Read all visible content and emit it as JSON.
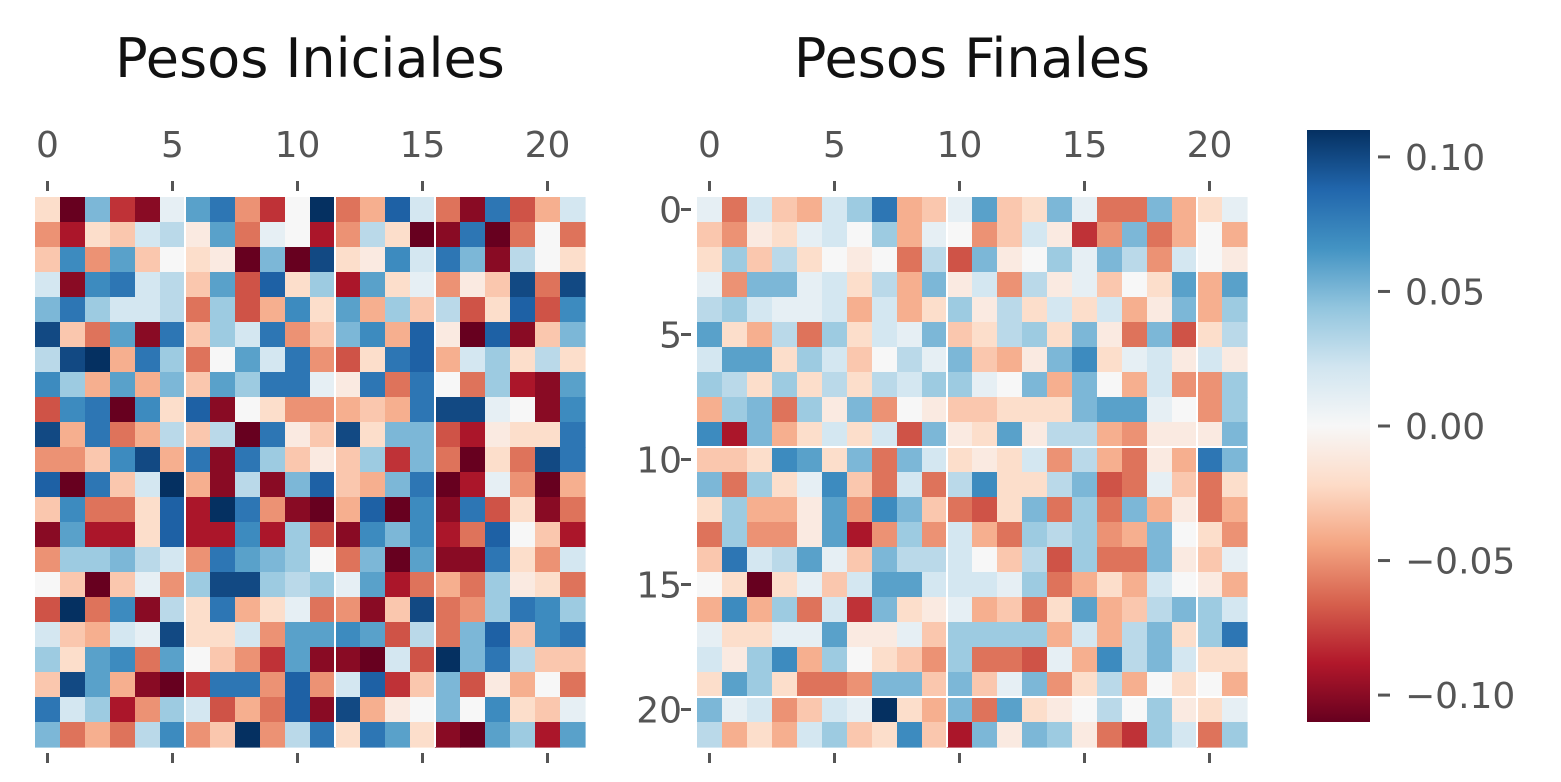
{
  "chart_data": [
    {
      "type": "heatmap",
      "title": "Pesos Iniciales",
      "rows": 22,
      "cols": 22,
      "x_ticks": [
        "0",
        "5",
        "10",
        "15",
        "20"
      ],
      "y_ticks": [],
      "colormap": "RdBu",
      "vmin": -0.11,
      "vmax": 0.11,
      "values": [
        [
          -0.02,
          -0.11,
          0.05,
          -0.08,
          -0.1,
          0.01,
          0.06,
          0.08,
          -0.05,
          -0.08,
          0.0,
          0.11,
          -0.06,
          -0.04,
          0.09,
          0.02,
          -0.06,
          -0.1,
          0.08,
          -0.07,
          -0.04,
          0.02
        ],
        [
          -0.05,
          -0.09,
          -0.02,
          -0.03,
          0.02,
          0.03,
          -0.01,
          0.06,
          -0.06,
          0.01,
          0.0,
          -0.09,
          -0.05,
          0.03,
          -0.02,
          -0.11,
          -0.1,
          0.08,
          -0.11,
          -0.06,
          0.0,
          -0.06
        ],
        [
          -0.03,
          0.07,
          -0.05,
          0.06,
          -0.03,
          0.0,
          -0.02,
          -0.01,
          -0.11,
          0.05,
          -0.11,
          0.1,
          -0.02,
          -0.01,
          0.07,
          0.02,
          0.08,
          0.05,
          -0.1,
          0.03,
          0.0,
          -0.02
        ],
        [
          0.02,
          -0.1,
          0.07,
          0.08,
          0.02,
          0.03,
          -0.03,
          0.06,
          -0.07,
          0.09,
          -0.02,
          0.04,
          -0.09,
          0.06,
          -0.02,
          0.01,
          -0.05,
          -0.01,
          -0.03,
          0.1,
          -0.06,
          0.1
        ],
        [
          0.05,
          0.08,
          0.04,
          0.02,
          0.02,
          0.03,
          -0.06,
          0.04,
          -0.07,
          -0.04,
          0.07,
          -0.02,
          0.06,
          -0.04,
          0.04,
          -0.03,
          0.03,
          -0.07,
          -0.02,
          0.09,
          -0.07,
          0.07
        ],
        [
          0.1,
          -0.03,
          -0.06,
          0.06,
          -0.1,
          0.08,
          -0.03,
          0.04,
          0.02,
          0.08,
          -0.05,
          -0.03,
          0.05,
          0.07,
          -0.04,
          0.09,
          -0.01,
          -0.11,
          0.09,
          -0.1,
          -0.03,
          0.05
        ],
        [
          0.03,
          0.1,
          0.11,
          -0.04,
          0.08,
          0.04,
          -0.06,
          0.0,
          0.06,
          0.02,
          0.08,
          -0.05,
          -0.07,
          -0.02,
          0.08,
          0.09,
          -0.04,
          0.02,
          0.04,
          -0.02,
          0.03,
          -0.02
        ],
        [
          0.07,
          0.04,
          -0.04,
          0.06,
          -0.04,
          0.05,
          -0.03,
          0.06,
          0.04,
          0.08,
          0.08,
          0.01,
          -0.01,
          0.08,
          -0.06,
          0.08,
          0.0,
          -0.06,
          0.04,
          -0.09,
          -0.1,
          0.06
        ],
        [
          -0.07,
          0.07,
          0.08,
          -0.11,
          0.07,
          -0.02,
          0.09,
          -0.1,
          0.0,
          -0.02,
          -0.05,
          -0.05,
          -0.04,
          -0.03,
          -0.04,
          0.08,
          0.1,
          0.1,
          0.01,
          0.0,
          -0.1,
          0.07
        ],
        [
          0.1,
          -0.04,
          0.08,
          -0.06,
          -0.04,
          0.03,
          -0.03,
          0.03,
          -0.11,
          0.08,
          -0.01,
          -0.03,
          0.1,
          -0.02,
          0.05,
          0.05,
          -0.07,
          -0.09,
          -0.01,
          -0.02,
          -0.02,
          0.08
        ],
        [
          -0.05,
          -0.05,
          -0.03,
          0.07,
          0.1,
          -0.04,
          0.08,
          -0.1,
          0.08,
          0.04,
          -0.03,
          -0.01,
          -0.03,
          0.04,
          -0.08,
          0.05,
          -0.06,
          -0.11,
          -0.02,
          -0.06,
          0.1,
          0.08
        ],
        [
          0.09,
          -0.11,
          0.08,
          -0.03,
          0.02,
          0.11,
          -0.04,
          -0.1,
          0.03,
          -0.1,
          0.05,
          0.09,
          -0.03,
          -0.04,
          0.05,
          0.08,
          -0.11,
          -0.09,
          0.01,
          -0.05,
          -0.11,
          -0.04
        ],
        [
          -0.03,
          0.07,
          -0.06,
          -0.06,
          -0.02,
          0.09,
          -0.09,
          0.11,
          0.08,
          -0.05,
          -0.1,
          -0.11,
          -0.04,
          0.09,
          -0.11,
          0.07,
          -0.1,
          0.08,
          -0.07,
          -0.02,
          -0.1,
          -0.06
        ],
        [
          -0.1,
          0.06,
          -0.09,
          -0.09,
          -0.02,
          0.09,
          -0.09,
          -0.09,
          0.07,
          -0.09,
          0.04,
          -0.07,
          -0.1,
          0.07,
          0.05,
          0.07,
          -0.09,
          -0.06,
          0.09,
          0.0,
          -0.03,
          -0.09
        ],
        [
          -0.05,
          0.04,
          0.04,
          0.05,
          0.03,
          0.02,
          -0.05,
          0.08,
          0.06,
          0.05,
          0.04,
          0.0,
          -0.06,
          0.05,
          -0.11,
          0.06,
          -0.1,
          -0.1,
          0.08,
          -0.02,
          -0.05,
          0.02
        ],
        [
          0.0,
          -0.03,
          -0.11,
          -0.03,
          0.01,
          -0.05,
          0.04,
          0.1,
          0.1,
          0.04,
          0.03,
          0.04,
          0.01,
          0.06,
          -0.09,
          -0.06,
          -0.04,
          -0.06,
          0.04,
          -0.01,
          -0.02,
          -0.06
        ],
        [
          -0.07,
          0.11,
          -0.06,
          0.07,
          -0.1,
          0.03,
          -0.02,
          0.08,
          -0.04,
          -0.02,
          0.01,
          -0.06,
          -0.05,
          -0.1,
          -0.03,
          0.1,
          -0.06,
          -0.05,
          0.04,
          0.08,
          0.07,
          0.04
        ],
        [
          0.02,
          -0.03,
          -0.04,
          0.02,
          0.01,
          0.1,
          -0.02,
          -0.02,
          0.02,
          -0.05,
          0.06,
          0.06,
          0.07,
          0.06,
          -0.07,
          0.03,
          -0.06,
          0.05,
          0.09,
          -0.03,
          0.07,
          0.08
        ],
        [
          0.04,
          -0.02,
          0.06,
          0.07,
          -0.06,
          0.06,
          0.0,
          -0.03,
          -0.05,
          -0.08,
          0.06,
          -0.1,
          -0.1,
          -0.11,
          0.02,
          -0.07,
          0.11,
          0.05,
          0.08,
          0.03,
          -0.03,
          -0.03
        ],
        [
          -0.03,
          0.1,
          0.06,
          -0.04,
          -0.1,
          -0.11,
          -0.08,
          0.08,
          0.08,
          -0.05,
          0.09,
          -0.05,
          0.02,
          0.09,
          -0.08,
          -0.03,
          0.05,
          -0.07,
          -0.01,
          -0.04,
          0.0,
          -0.06
        ],
        [
          0.08,
          0.02,
          0.04,
          -0.09,
          -0.05,
          0.04,
          0.02,
          -0.07,
          -0.04,
          -0.06,
          0.09,
          -0.1,
          0.1,
          -0.04,
          -0.01,
          0.0,
          0.05,
          0.0,
          0.07,
          -0.02,
          -0.03,
          0.01
        ],
        [
          0.05,
          -0.06,
          -0.04,
          -0.06,
          0.03,
          0.07,
          -0.05,
          -0.03,
          0.11,
          -0.05,
          0.03,
          0.08,
          -0.02,
          0.08,
          0.06,
          -0.02,
          -0.1,
          -0.11,
          0.06,
          0.04,
          -0.09,
          0.06
        ]
      ]
    },
    {
      "type": "heatmap",
      "title": "Pesos Finales",
      "rows": 22,
      "cols": 22,
      "x_ticks": [
        "0",
        "5",
        "10",
        "15",
        "20"
      ],
      "y_ticks": [
        "0",
        "5",
        "10",
        "15",
        "20"
      ],
      "colormap": "RdBu",
      "vmin": -0.11,
      "vmax": 0.11,
      "values": [
        [
          0.01,
          -0.06,
          0.02,
          -0.03,
          -0.04,
          0.02,
          0.04,
          0.08,
          -0.04,
          -0.03,
          0.01,
          0.06,
          -0.03,
          -0.02,
          0.05,
          0.01,
          -0.06,
          -0.06,
          0.05,
          -0.04,
          -0.02,
          0.01
        ],
        [
          -0.03,
          -0.05,
          -0.01,
          -0.02,
          0.01,
          0.02,
          0.0,
          0.04,
          -0.04,
          0.01,
          0.0,
          -0.05,
          -0.03,
          0.02,
          -0.01,
          -0.08,
          -0.05,
          0.05,
          -0.06,
          -0.04,
          0.0,
          -0.04
        ],
        [
          -0.02,
          0.04,
          -0.03,
          0.03,
          -0.02,
          0.0,
          -0.01,
          0.0,
          -0.06,
          0.03,
          -0.07,
          0.05,
          -0.01,
          0.0,
          0.04,
          0.01,
          0.05,
          0.03,
          -0.05,
          0.02,
          0.0,
          -0.01
        ],
        [
          0.01,
          -0.05,
          0.05,
          0.05,
          0.01,
          0.02,
          -0.02,
          0.03,
          -0.04,
          0.05,
          -0.01,
          0.02,
          -0.05,
          0.03,
          -0.01,
          0.01,
          -0.03,
          0.0,
          -0.02,
          0.06,
          -0.04,
          0.06
        ],
        [
          0.03,
          0.04,
          0.02,
          0.01,
          0.01,
          0.02,
          -0.04,
          0.02,
          -0.04,
          -0.02,
          0.04,
          -0.01,
          0.03,
          -0.02,
          0.02,
          -0.02,
          0.02,
          -0.04,
          -0.01,
          0.05,
          -0.04,
          0.04
        ],
        [
          0.06,
          -0.02,
          -0.04,
          0.03,
          -0.06,
          0.04,
          -0.02,
          0.02,
          0.01,
          0.05,
          -0.03,
          -0.02,
          0.03,
          0.04,
          -0.02,
          0.05,
          -0.01,
          -0.06,
          0.05,
          -0.07,
          -0.02,
          0.03
        ],
        [
          0.02,
          0.06,
          0.06,
          -0.02,
          0.04,
          0.02,
          -0.03,
          0.0,
          0.03,
          0.01,
          0.05,
          -0.03,
          -0.04,
          -0.01,
          0.05,
          0.07,
          -0.02,
          0.01,
          0.02,
          -0.01,
          0.02,
          -0.01
        ],
        [
          0.04,
          0.03,
          -0.02,
          0.04,
          -0.02,
          0.03,
          -0.02,
          0.03,
          0.02,
          0.04,
          0.04,
          0.01,
          0.0,
          0.05,
          -0.04,
          0.05,
          0.0,
          -0.04,
          0.02,
          -0.05,
          -0.05,
          0.04
        ],
        [
          -0.04,
          0.04,
          0.05,
          -0.06,
          0.04,
          -0.01,
          0.05,
          -0.05,
          0.0,
          -0.01,
          -0.03,
          -0.03,
          -0.02,
          -0.02,
          -0.02,
          0.05,
          0.06,
          0.06,
          0.01,
          0.0,
          -0.05,
          0.04
        ],
        [
          0.07,
          -0.09,
          0.05,
          -0.04,
          -0.02,
          0.02,
          -0.02,
          0.02,
          -0.07,
          0.05,
          -0.01,
          -0.02,
          0.06,
          -0.01,
          0.03,
          0.03,
          -0.04,
          -0.05,
          -0.01,
          -0.01,
          -0.01,
          0.05
        ],
        [
          -0.03,
          -0.03,
          -0.02,
          0.07,
          0.06,
          -0.02,
          0.05,
          -0.06,
          0.05,
          0.02,
          -0.02,
          -0.01,
          -0.02,
          0.02,
          -0.05,
          0.03,
          -0.04,
          -0.06,
          -0.01,
          -0.04,
          0.08,
          0.05
        ],
        [
          0.05,
          -0.06,
          0.04,
          -0.02,
          0.01,
          0.07,
          -0.03,
          -0.06,
          0.02,
          -0.06,
          0.03,
          0.07,
          -0.02,
          -0.02,
          0.03,
          0.05,
          -0.07,
          -0.06,
          0.01,
          -0.03,
          -0.06,
          -0.02
        ],
        [
          -0.02,
          0.04,
          -0.04,
          -0.04,
          -0.01,
          0.06,
          -0.05,
          0.07,
          0.05,
          -0.03,
          -0.06,
          -0.07,
          -0.02,
          0.05,
          -0.06,
          0.04,
          -0.06,
          0.05,
          -0.04,
          -0.01,
          -0.06,
          -0.04
        ],
        [
          -0.06,
          0.04,
          -0.05,
          -0.05,
          -0.01,
          0.06,
          -0.09,
          -0.05,
          0.04,
          -0.05,
          0.02,
          -0.04,
          -0.06,
          0.04,
          0.03,
          0.04,
          -0.05,
          -0.04,
          0.05,
          0.0,
          -0.02,
          -0.05
        ],
        [
          -0.03,
          0.08,
          0.02,
          0.03,
          0.06,
          0.01,
          -0.03,
          0.05,
          0.03,
          0.03,
          0.02,
          0.0,
          -0.03,
          0.03,
          -0.07,
          0.04,
          -0.06,
          -0.06,
          0.05,
          -0.01,
          -0.03,
          0.01
        ],
        [
          0.0,
          -0.02,
          -0.11,
          -0.02,
          0.01,
          -0.03,
          0.02,
          0.06,
          0.06,
          0.02,
          0.02,
          0.02,
          0.01,
          0.04,
          -0.06,
          -0.04,
          -0.02,
          -0.04,
          0.02,
          0.0,
          -0.01,
          -0.04
        ],
        [
          -0.04,
          0.07,
          -0.04,
          0.04,
          -0.06,
          0.02,
          -0.08,
          0.05,
          -0.02,
          -0.01,
          0.01,
          -0.04,
          -0.03,
          -0.06,
          -0.02,
          0.06,
          -0.04,
          -0.03,
          0.03,
          0.05,
          0.04,
          0.02
        ],
        [
          0.01,
          -0.02,
          -0.02,
          0.01,
          0.01,
          0.06,
          -0.01,
          -0.01,
          0.01,
          -0.03,
          0.04,
          0.04,
          0.04,
          0.04,
          -0.04,
          0.02,
          -0.04,
          0.03,
          0.05,
          -0.02,
          0.04,
          0.08
        ],
        [
          0.02,
          -0.01,
          0.04,
          0.07,
          -0.04,
          0.04,
          0.0,
          -0.02,
          -0.03,
          -0.05,
          0.04,
          -0.06,
          -0.06,
          -0.07,
          0.01,
          -0.04,
          0.07,
          0.03,
          0.05,
          0.02,
          -0.02,
          -0.02
        ],
        [
          -0.02,
          0.06,
          0.04,
          -0.02,
          -0.06,
          -0.06,
          -0.05,
          0.05,
          0.05,
          -0.03,
          0.05,
          -0.03,
          0.01,
          0.05,
          -0.05,
          -0.02,
          0.03,
          -0.04,
          0.0,
          -0.02,
          0.0,
          -0.04
        ],
        [
          0.05,
          0.01,
          0.02,
          -0.05,
          -0.03,
          0.02,
          0.01,
          0.11,
          -0.02,
          -0.04,
          0.05,
          -0.06,
          0.06,
          -0.02,
          -0.01,
          0.0,
          0.03,
          0.0,
          0.04,
          -0.01,
          -0.02,
          0.01
        ],
        [
          0.03,
          -0.04,
          -0.02,
          -0.04,
          0.02,
          0.04,
          -0.03,
          -0.02,
          0.07,
          -0.03,
          -0.09,
          0.05,
          -0.01,
          0.05,
          0.04,
          -0.01,
          -0.06,
          -0.08,
          0.04,
          0.02,
          -0.06,
          0.04
        ]
      ]
    }
  ],
  "colorbar": {
    "ticks": [
      {
        "value": 0.1,
        "label": "0.10"
      },
      {
        "value": 0.05,
        "label": "0.05"
      },
      {
        "value": 0.0,
        "label": "0.00"
      },
      {
        "value": -0.05,
        "label": "−0.05"
      },
      {
        "value": -0.1,
        "label": "−0.10"
      }
    ]
  }
}
